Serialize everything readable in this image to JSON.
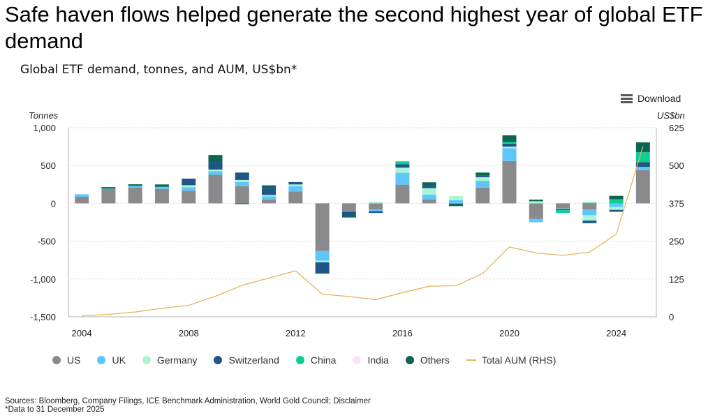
{
  "title": "Safe haven flows helped generate the second highest year of global ETF demand",
  "subtitle": "Global ETF demand, tonnes, and AUM, US$bn*",
  "download_label": "Download",
  "download_icon": "menu-icon",
  "source": "Sources: Bloomberg, Company Filings, ICE Benchmark Administration, World Gold Council; Disclaimer",
  "footnote": "*Data to 31 December 2025",
  "chart_data": {
    "type": "bar",
    "stacked": true,
    "title": "Global ETF demand, tonnes, and AUM, US$bn*",
    "ylabel": "Tonnes",
    "y2label": "US$bn",
    "ylim": [
      -1500,
      1000
    ],
    "y2lim": [
      0,
      625
    ],
    "yticks": [
      "1,000",
      "500",
      "0",
      "-500",
      "-1,000",
      "-1,500"
    ],
    "y2ticks": [
      "625",
      "500",
      "375",
      "250",
      "125",
      "0"
    ],
    "xticks": [
      "2004",
      "2008",
      "2012",
      "2016",
      "2020",
      "2024"
    ],
    "grid": true,
    "legend_position": "bottom",
    "categories": [
      2004,
      2005,
      2006,
      2007,
      2008,
      2009,
      2010,
      2011,
      2012,
      2013,
      2014,
      2015,
      2016,
      2017,
      2018,
      2019,
      2020,
      2021,
      2022,
      2023,
      2024,
      2025
    ],
    "series": [
      {
        "name": "US",
        "color": "#8a898c",
        "values": [
          87,
          190,
          207,
          188,
          167,
          377,
          228,
          49,
          157,
          -630,
          -105,
          -80,
          247,
          52,
          -5,
          207,
          559,
          -204,
          -68,
          -80,
          0,
          438
        ]
      },
      {
        "name": "UK",
        "color": "#5ec6fb",
        "values": [
          33,
          5,
          25,
          31,
          46,
          49,
          53,
          44,
          71,
          -129,
          -5,
          -25,
          157,
          65,
          43,
          92,
          169,
          -46,
          -9,
          -77,
          -49,
          44
        ]
      },
      {
        "name": "Germany",
        "color": "#a9f6d4",
        "values": [
          0,
          0,
          0,
          0,
          27,
          21,
          28,
          18,
          22,
          -21,
          0,
          19,
          68,
          84,
          53,
          47,
          22,
          28,
          0,
          -71,
          -37,
          0
        ]
      },
      {
        "name": "Switzerland",
        "color": "#1f5587",
        "values": [
          0,
          0,
          0,
          0,
          87,
          96,
          98,
          93,
          31,
          -149,
          -57,
          -22,
          46,
          37,
          -10,
          21,
          40,
          0,
          -13,
          -34,
          -25,
          61
        ]
      },
      {
        "name": "China",
        "color": "#0dcf90",
        "values": [
          0,
          0,
          0,
          0,
          0,
          0,
          0,
          0,
          0,
          0,
          0,
          0,
          37,
          0,
          0,
          0,
          20,
          0,
          -37,
          10,
          55,
          133
        ]
      },
      {
        "name": "India",
        "color": "#f7e4f5",
        "values": [
          0,
          0,
          0,
          0,
          0,
          0,
          0,
          0,
          0,
          0,
          0,
          0,
          0,
          0,
          0,
          0,
          0,
          0,
          0,
          0,
          0,
          0
        ]
      },
      {
        "name": "Others",
        "color": "#0b6651",
        "values": [
          0,
          20,
          20,
          31,
          0,
          96,
          -10,
          34,
          0,
          0,
          -20,
          0,
          0,
          40,
          -21,
          40,
          90,
          21,
          0,
          0,
          44,
          130
        ]
      }
    ],
    "line": {
      "name": "Total AUM (RHS)",
      "color": "#e2b65a",
      "axis": "right",
      "values": [
        3,
        8,
        16,
        28,
        38,
        68,
        104,
        128,
        152,
        75,
        67,
        57,
        80,
        101,
        103,
        143,
        231,
        211,
        203,
        214,
        273,
        563
      ]
    }
  }
}
